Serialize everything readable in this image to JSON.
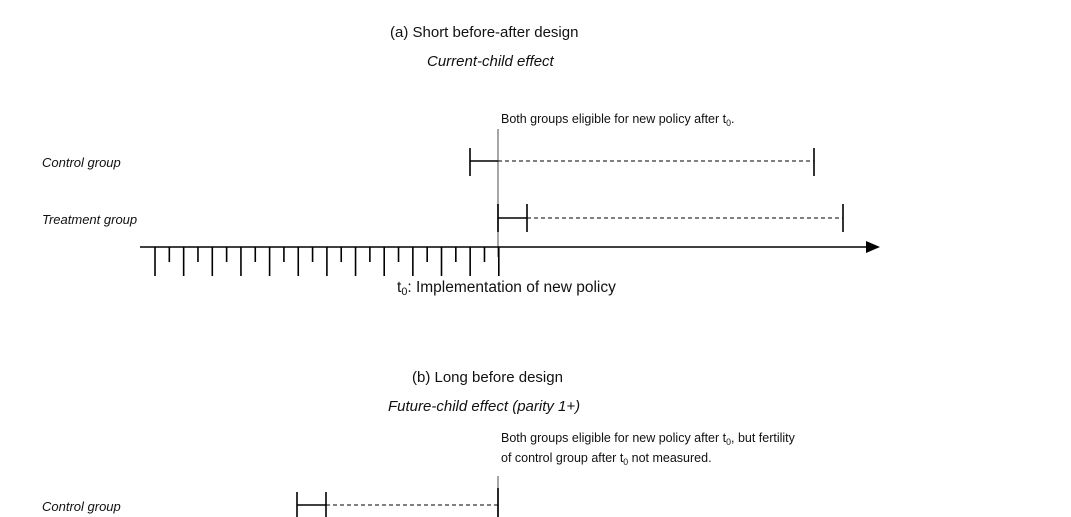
{
  "panel_a": {
    "title": "(a) Short before-after design",
    "subtitle": "Current-child effect",
    "note_pre": "Both groups eligible for new policy after t",
    "note_sub": "0",
    "note_post": ".",
    "control_label": "Control group",
    "treatment_label": "Treatment group",
    "axis_caption_pre": "t",
    "axis_caption_sub": "0",
    "axis_caption_post": ": Implementation of new policy"
  },
  "panel_b": {
    "title": "(b) Long before design",
    "subtitle": "Future-child effect (parity 1+)",
    "note_line1_pre": "Both groups eligible for new policy after t",
    "note_line1_sub": "0",
    "note_line1_post": ", but fertility",
    "note_line2_pre": "of control group after t",
    "note_line2_sub": "0",
    "note_line2_post": " not measured.",
    "control_label": "Control group"
  }
}
